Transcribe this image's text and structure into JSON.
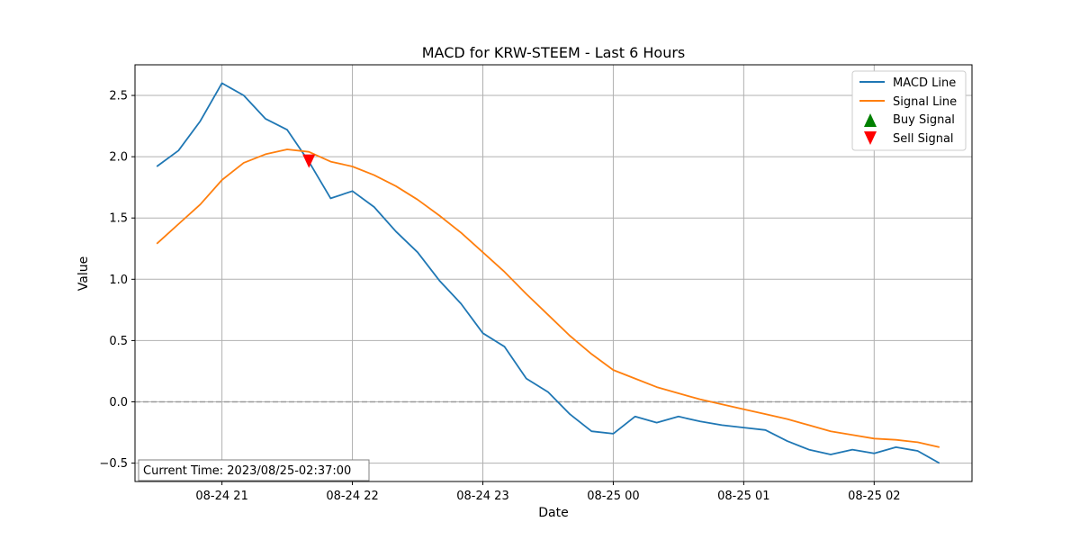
{
  "chart_data": {
    "type": "line",
    "title": "MACD for KRW-STEEM - Last 6 Hours",
    "xlabel": "Date",
    "ylabel": "Value",
    "xlim": [
      "2023-08-24 20:20",
      "2023-08-25 02:45"
    ],
    "ylim": [
      -0.65,
      2.75
    ],
    "x_ticks": [
      {
        "t": "2023-08-24 21:00",
        "label": "08-24 21"
      },
      {
        "t": "2023-08-24 22:00",
        "label": "08-24 22"
      },
      {
        "t": "2023-08-24 23:00",
        "label": "08-24 23"
      },
      {
        "t": "2023-08-25 00:00",
        "label": "08-25 00"
      },
      {
        "t": "2023-08-25 01:00",
        "label": "08-25 01"
      },
      {
        "t": "2023-08-25 02:00",
        "label": "08-25 02"
      }
    ],
    "y_ticks": [
      {
        "v": -0.5,
        "label": "−0.5"
      },
      {
        "v": 0.0,
        "label": "0.0"
      },
      {
        "v": 0.5,
        "label": "0.5"
      },
      {
        "v": 1.0,
        "label": "1.0"
      },
      {
        "v": 1.5,
        "label": "1.5"
      },
      {
        "v": 2.0,
        "label": "2.0"
      },
      {
        "v": 2.5,
        "label": "2.5"
      }
    ],
    "grid": true,
    "zero_line": {
      "y": 0,
      "style": "dashed",
      "color": "#999999"
    },
    "x": [
      "2023-08-24 20:30",
      "2023-08-24 20:40",
      "2023-08-24 20:50",
      "2023-08-24 21:00",
      "2023-08-24 21:10",
      "2023-08-24 21:20",
      "2023-08-24 21:30",
      "2023-08-24 21:40",
      "2023-08-24 21:50",
      "2023-08-24 22:00",
      "2023-08-24 22:10",
      "2023-08-24 22:20",
      "2023-08-24 22:30",
      "2023-08-24 22:40",
      "2023-08-24 22:50",
      "2023-08-24 23:00",
      "2023-08-24 23:10",
      "2023-08-24 23:20",
      "2023-08-24 23:30",
      "2023-08-24 23:40",
      "2023-08-24 23:50",
      "2023-08-25 00:00",
      "2023-08-25 00:10",
      "2023-08-25 00:20",
      "2023-08-25 00:30",
      "2023-08-25 00:40",
      "2023-08-25 00:50",
      "2023-08-25 01:00",
      "2023-08-25 01:10",
      "2023-08-25 01:20",
      "2023-08-25 01:30",
      "2023-08-25 01:40",
      "2023-08-25 01:50",
      "2023-08-25 02:00",
      "2023-08-25 02:10",
      "2023-08-25 02:20",
      "2023-08-25 02:30"
    ],
    "series": [
      {
        "name": "MACD Line",
        "color": "#1f77b4",
        "values": [
          1.92,
          2.05,
          2.29,
          2.6,
          2.5,
          2.31,
          2.22,
          1.96,
          1.66,
          1.72,
          1.59,
          1.39,
          1.22,
          0.99,
          0.8,
          0.56,
          0.45,
          0.19,
          0.08,
          -0.1,
          -0.24,
          -0.26,
          -0.12,
          -0.17,
          -0.12,
          -0.16,
          -0.19,
          -0.21,
          -0.23,
          -0.32,
          -0.39,
          -0.43,
          -0.39,
          -0.42,
          -0.37,
          -0.4,
          -0.5
        ]
      },
      {
        "name": "Signal Line",
        "color": "#ff7f0e",
        "values": [
          1.29,
          1.45,
          1.61,
          1.81,
          1.95,
          2.02,
          2.06,
          2.04,
          1.96,
          1.92,
          1.85,
          1.76,
          1.65,
          1.52,
          1.38,
          1.22,
          1.06,
          0.88,
          0.71,
          0.54,
          0.39,
          0.26,
          0.19,
          0.12,
          0.07,
          0.02,
          -0.02,
          -0.06,
          -0.1,
          -0.14,
          -0.19,
          -0.24,
          -0.27,
          -0.3,
          -0.31,
          -0.33,
          -0.37
        ]
      }
    ],
    "signals": {
      "buy": {
        "name": "Buy Signal",
        "color": "#008000",
        "marker": "triangle-up",
        "points": []
      },
      "sell": {
        "name": "Sell Signal",
        "color": "#ff0000",
        "marker": "triangle-down",
        "points": [
          {
            "t": "2023-08-24 21:40",
            "v": 1.96
          }
        ]
      }
    },
    "legend": {
      "placement": "top-right",
      "entries": [
        "MACD Line",
        "Signal Line",
        "Buy Signal",
        "Sell Signal"
      ]
    },
    "annotation": {
      "text": "Current Time: 2023/08/25-02:37:00",
      "placement": "bottom-left"
    }
  }
}
